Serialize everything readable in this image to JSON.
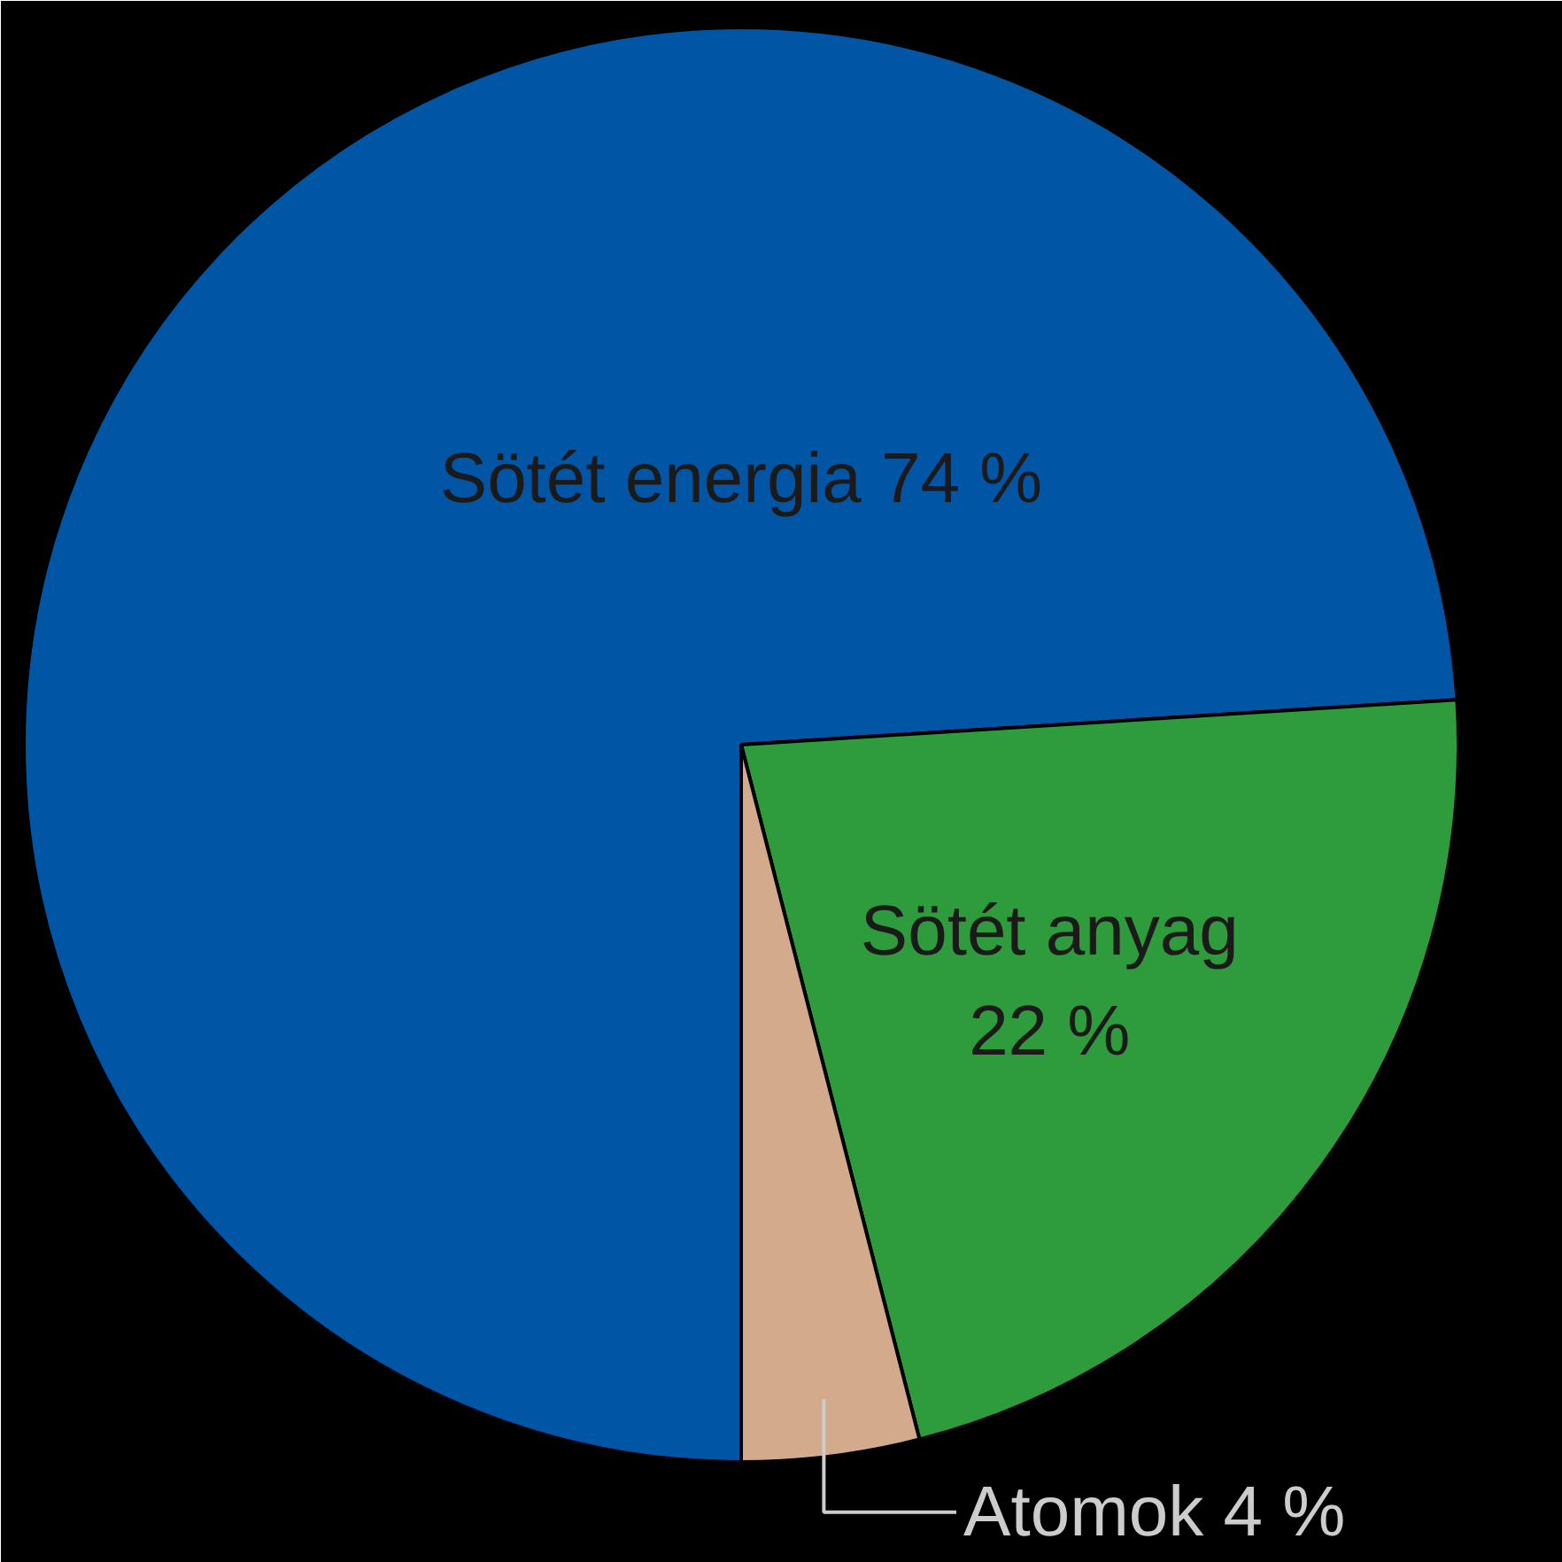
{
  "chart_data": {
    "type": "pie",
    "categories": [
      "Sötét energia",
      "Sötét anyag",
      "Atomok"
    ],
    "values": [
      74,
      22,
      4
    ],
    "colors": [
      "#0055a5",
      "#2e9c3c",
      "#d4aa8c"
    ],
    "value_labels": [
      "74 %",
      "22 %",
      "4 %"
    ]
  }
}
